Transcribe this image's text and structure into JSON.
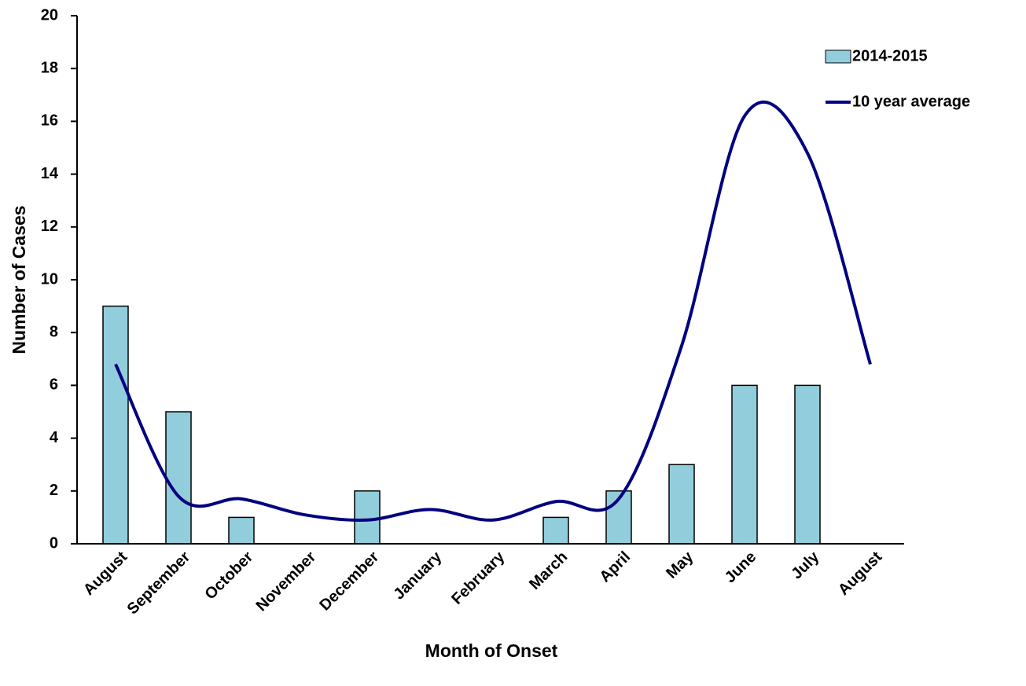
{
  "chart_data": {
    "type": "bar",
    "x_label": "Month of Onset",
    "y_label": "Number of Cases",
    "categories": [
      "August",
      "September",
      "October",
      "November",
      "December",
      "January",
      "February",
      "March",
      "April",
      "May",
      "June",
      "July",
      "August"
    ],
    "series": [
      {
        "name": "2014-2015",
        "type": "bar",
        "color": "#92cddc",
        "values": [
          9,
          5,
          1,
          0,
          2,
          0,
          0,
          1,
          2,
          3,
          6,
          6,
          null
        ]
      },
      {
        "name": "10 year average",
        "type": "line",
        "color": "#000080",
        "smooth": true,
        "values": [
          6.8,
          1.8,
          1.7,
          1.1,
          0.9,
          1.3,
          0.9,
          1.6,
          1.7,
          7.5,
          16.2,
          14.8,
          6.8
        ]
      }
    ],
    "ylim": [
      0,
      20
    ],
    "yticks": [
      0,
      2,
      4,
      6,
      8,
      10,
      12,
      14,
      16,
      18,
      20
    ],
    "legend": "upper right"
  }
}
